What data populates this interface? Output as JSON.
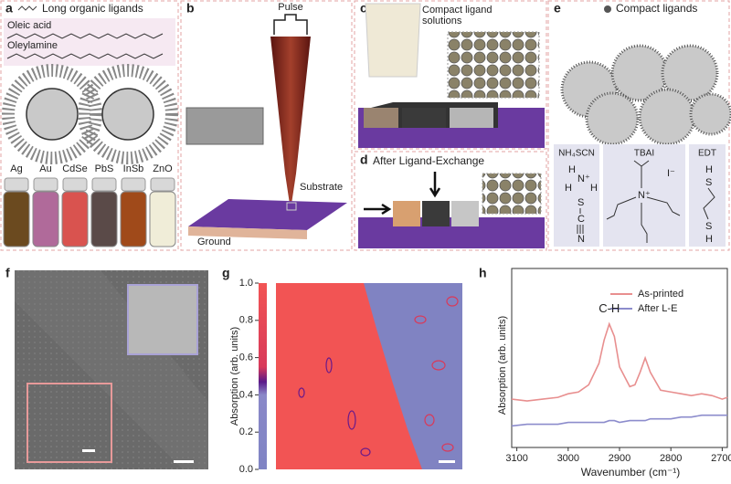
{
  "panel_a": {
    "letter": "a",
    "legend": "Long organic ligands",
    "ligands": [
      "Oleic acid",
      "Oleylamine"
    ],
    "vials": [
      "Ag",
      "Au",
      "CdSe",
      "PbS",
      "InSb",
      "ZnO"
    ]
  },
  "panel_b": {
    "letter": "b",
    "labels": [
      "Pulse",
      "Substrate",
      "Ground"
    ]
  },
  "panel_c": {
    "letter": "c",
    "label": [
      "Compact ligand",
      "solutions"
    ]
  },
  "panel_d": {
    "letter": "d",
    "label": "After Ligand-Exchange"
  },
  "panel_e": {
    "letter": "e",
    "legend": "Compact ligands",
    "ligands": [
      "NH₄SCN",
      "TBAI",
      "EDT"
    ],
    "atoms": {
      "nh4scn": [
        "H",
        "N⁺",
        "H",
        "H",
        "S",
        "C",
        "N"
      ],
      "tbai": [
        "N⁺",
        "I⁻"
      ],
      "edt": [
        "H",
        "S",
        "S",
        "H"
      ]
    }
  },
  "panel_f": {
    "letter": "f"
  },
  "panel_g": {
    "letter": "g",
    "chart_data": {
      "type": "colorbar",
      "ylabel": "Absorption (arb. units)",
      "ylim": [
        0,
        1
      ],
      "yticks": [
        {
          "value": 0,
          "label": "0.0"
        },
        {
          "value": 0.2,
          "label": "0.2"
        },
        {
          "value": 0.4,
          "label": "0.4"
        },
        {
          "value": 0.6,
          "label": "0.6"
        },
        {
          "value": 0.8,
          "label": "0.8"
        },
        {
          "value": 1,
          "label": "1.0"
        }
      ]
    }
  },
  "panel_h": {
    "letter": "h",
    "chart_data": {
      "type": "line",
      "annotation": "C-H",
      "xlabel": "Wavenumber (cm⁻¹)",
      "ylabel": "Absorption (arb. units)",
      "x": [
        3110,
        3080,
        3050,
        3020,
        3000,
        2980,
        2960,
        2940,
        2930,
        2920,
        2910,
        2900,
        2880,
        2870,
        2860,
        2850,
        2840,
        2820,
        2800,
        2780,
        2760,
        2740,
        2720,
        2700,
        2690
      ],
      "xlim": [
        3110,
        2690
      ],
      "xticks": [
        3100,
        3000,
        2900,
        2800,
        2700
      ],
      "ylim": [
        0,
        1
      ],
      "series": [
        {
          "name": "As-printed",
          "color": "#e88f8f",
          "values": [
            0.27,
            0.26,
            0.27,
            0.28,
            0.3,
            0.31,
            0.35,
            0.47,
            0.6,
            0.69,
            0.62,
            0.45,
            0.34,
            0.35,
            0.42,
            0.5,
            0.42,
            0.32,
            0.31,
            0.3,
            0.29,
            0.3,
            0.29,
            0.27,
            0.28
          ]
        },
        {
          "name": "After L-E",
          "color": "#8c8ccc",
          "values": [
            0.12,
            0.13,
            0.13,
            0.13,
            0.14,
            0.14,
            0.14,
            0.14,
            0.14,
            0.15,
            0.15,
            0.14,
            0.15,
            0.15,
            0.15,
            0.15,
            0.16,
            0.16,
            0.16,
            0.17,
            0.17,
            0.18,
            0.18,
            0.18,
            0.18
          ]
        }
      ]
    }
  }
}
